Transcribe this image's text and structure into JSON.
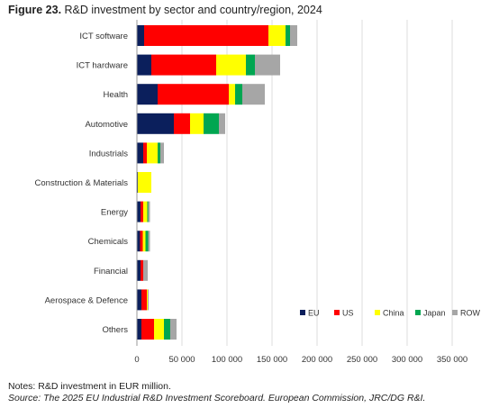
{
  "figure": {
    "label": "Figure 23.",
    "title": "R&D investment by sector and country/region, 2024"
  },
  "notes": {
    "note": "Notes: R&D investment in EUR million.",
    "source": "Source: The 2025 EU Industrial R&D Investment Scoreboard. European Commission, JRC/DG R&I."
  },
  "chart_data": {
    "type": "bar",
    "orientation": "horizontal",
    "stacked": true,
    "title": "R&D investment by sector and country/region, 2024",
    "xlabel": "",
    "ylabel": "",
    "xlim": [
      0,
      350000
    ],
    "xticks": [
      0,
      50000,
      100000,
      150000,
      200000,
      250000,
      300000,
      350000
    ],
    "xtick_labels": [
      "0",
      "50 000",
      "100 000",
      "150 000",
      "200 000",
      "250 000",
      "300 000",
      "350 000"
    ],
    "grid": "vertical",
    "legend_position": "bottom-right",
    "categories": [
      "ICT software",
      "ICT hardware",
      "Health",
      "Automotive",
      "Industrials",
      "Construction & Materials",
      "Energy",
      "Chemicals",
      "Financial",
      "Aerospace & Defence",
      "Others"
    ],
    "series": [
      {
        "name": "EU",
        "color": "#0b1f5c",
        "values": [
          8000,
          16000,
          23000,
          41000,
          7000,
          1000,
          4000,
          3500,
          4000,
          5000,
          5000
        ]
      },
      {
        "name": "US",
        "color": "#ff0000",
        "values": [
          138000,
          72000,
          79000,
          18000,
          4000,
          0,
          3000,
          3000,
          3000,
          6000,
          14000
        ]
      },
      {
        "name": "China",
        "color": "#ffff00",
        "values": [
          19000,
          33000,
          7000,
          15000,
          12000,
          15000,
          4500,
          3000,
          0,
          1000,
          11000
        ]
      },
      {
        "name": "Japan",
        "color": "#00a651",
        "values": [
          5000,
          10000,
          8000,
          17000,
          3000,
          0,
          1000,
          3000,
          0,
          0,
          7000
        ]
      },
      {
        "name": "ROW",
        "color": "#a6a6a6",
        "values": [
          8000,
          28000,
          25000,
          7000,
          4000,
          0,
          2000,
          2000,
          5000,
          1000,
          7000
        ]
      }
    ]
  }
}
